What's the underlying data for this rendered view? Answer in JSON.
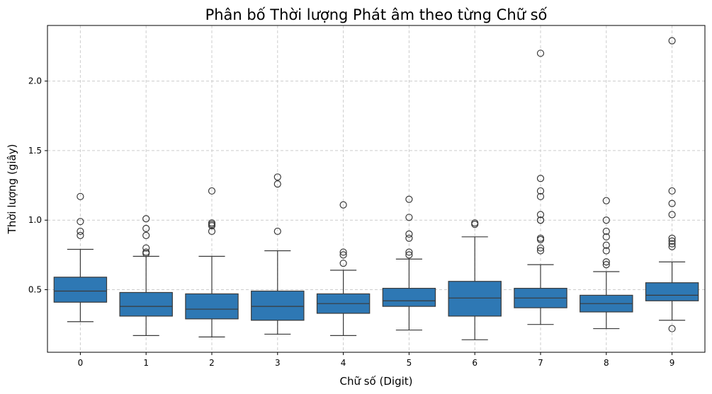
{
  "chart_data": {
    "type": "box",
    "title": "Phân bố Thời lượng Phát âm theo từng Chữ số",
    "xlabel": "Chữ số (Digit)",
    "ylabel": "Thời lượng (giây)",
    "ylim": [
      0.05,
      2.4
    ],
    "yticks": [
      "0.5",
      "1.0",
      "1.5",
      "2.0"
    ],
    "grid": true,
    "box_color": "#2e78b4",
    "categories": [
      "0",
      "1",
      "2",
      "3",
      "4",
      "5",
      "6",
      "7",
      "8",
      "9"
    ],
    "boxes": [
      {
        "whisker_low": 0.27,
        "q1": 0.41,
        "median": 0.49,
        "q3": 0.59,
        "whisker_high": 0.79,
        "outliers": [
          0.89,
          0.92,
          0.99,
          1.17
        ]
      },
      {
        "whisker_low": 0.17,
        "q1": 0.31,
        "median": 0.38,
        "q3": 0.48,
        "whisker_high": 0.74,
        "outliers": [
          0.76,
          0.77,
          0.8,
          0.89,
          0.94,
          1.01
        ]
      },
      {
        "whisker_low": 0.16,
        "q1": 0.29,
        "median": 0.36,
        "q3": 0.47,
        "whisker_high": 0.74,
        "outliers": [
          0.92,
          0.96,
          0.97,
          0.98,
          1.21
        ]
      },
      {
        "whisker_low": 0.18,
        "q1": 0.28,
        "median": 0.38,
        "q3": 0.49,
        "whisker_high": 0.78,
        "outliers": [
          0.92,
          1.26,
          1.31
        ]
      },
      {
        "whisker_low": 0.17,
        "q1": 0.33,
        "median": 0.4,
        "q3": 0.47,
        "whisker_high": 0.64,
        "outliers": [
          0.69,
          0.75,
          0.77,
          1.11
        ]
      },
      {
        "whisker_low": 0.21,
        "q1": 0.38,
        "median": 0.42,
        "q3": 0.51,
        "whisker_high": 0.72,
        "outliers": [
          0.75,
          0.77,
          0.87,
          0.9,
          1.02,
          1.15
        ]
      },
      {
        "whisker_low": 0.14,
        "q1": 0.31,
        "median": 0.44,
        "q3": 0.56,
        "whisker_high": 0.88,
        "outliers": [
          0.97,
          0.98
        ]
      },
      {
        "whisker_low": 0.25,
        "q1": 0.37,
        "median": 0.44,
        "q3": 0.51,
        "whisker_high": 0.68,
        "outliers": [
          0.78,
          0.8,
          0.86,
          0.87,
          1.0,
          1.0,
          1.04,
          1.17,
          1.21,
          1.3,
          2.2
        ]
      },
      {
        "whisker_low": 0.22,
        "q1": 0.34,
        "median": 0.4,
        "q3": 0.46,
        "whisker_high": 0.63,
        "outliers": [
          0.68,
          0.7,
          0.78,
          0.82,
          0.88,
          0.92,
          1.0,
          1.14
        ]
      },
      {
        "whisker_low": 0.28,
        "q1": 0.42,
        "median": 0.46,
        "q3": 0.55,
        "whisker_high": 0.7,
        "outliers": [
          0.22,
          0.81,
          0.83,
          0.85,
          0.87,
          1.04,
          1.12,
          1.21,
          2.29
        ]
      }
    ]
  }
}
